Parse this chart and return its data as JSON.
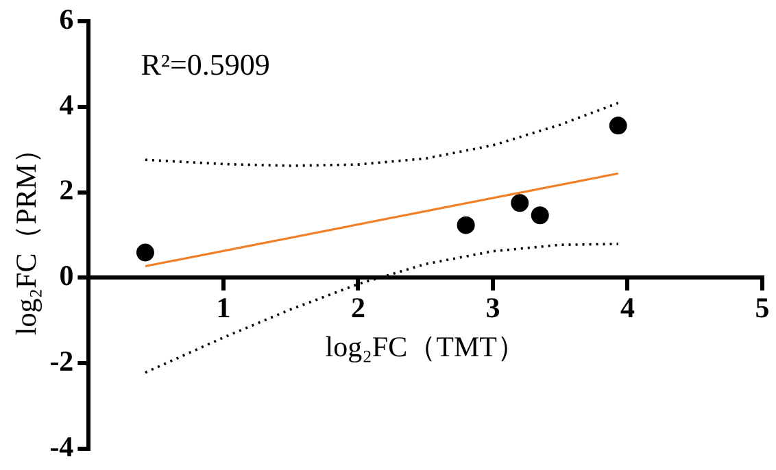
{
  "chart_data": {
    "type": "scatter",
    "xlabel": "log₂FC（TMT）",
    "ylabel": "log₂FC（PRM）",
    "annotations": [
      "R²=0.5909"
    ],
    "xlim": [
      0,
      5
    ],
    "xticks": [
      1,
      2,
      3,
      4,
      5
    ],
    "ylim": [
      -4,
      6
    ],
    "yticks": [
      -4,
      -2,
      0,
      2,
      4,
      6
    ],
    "grid": false,
    "legend": false,
    "series": [
      {
        "marker": "circle",
        "color": "#000000",
        "x": [
          0.42,
          2.8,
          3.2,
          3.35,
          3.93
        ],
        "values": [
          0.59,
          1.23,
          1.75,
          1.46,
          3.56
        ]
      },
      {
        "type": "line",
        "marker": "none",
        "color": "#f07f27",
        "line_style": "solid",
        "x": [
          0.42,
          3.93
        ],
        "values": [
          0.27,
          2.44
        ]
      },
      {
        "type": "line",
        "marker": "none",
        "color": "#000000",
        "line_style": "dotted",
        "x": [
          0.42,
          1,
          1.5,
          2,
          2.5,
          3,
          3.5,
          3.93
        ],
        "values": [
          2.76,
          2.66,
          2.62,
          2.65,
          2.79,
          3.1,
          3.58,
          4.09
        ]
      },
      {
        "type": "line",
        "marker": "none",
        "color": "#000000",
        "line_style": "dotted",
        "x": [
          0.42,
          1,
          1.5,
          2,
          2.5,
          3,
          3.5,
          3.93
        ],
        "values": [
          -2.22,
          -1.4,
          -0.74,
          -0.15,
          0.32,
          0.62,
          0.77,
          0.79
        ]
      }
    ]
  }
}
